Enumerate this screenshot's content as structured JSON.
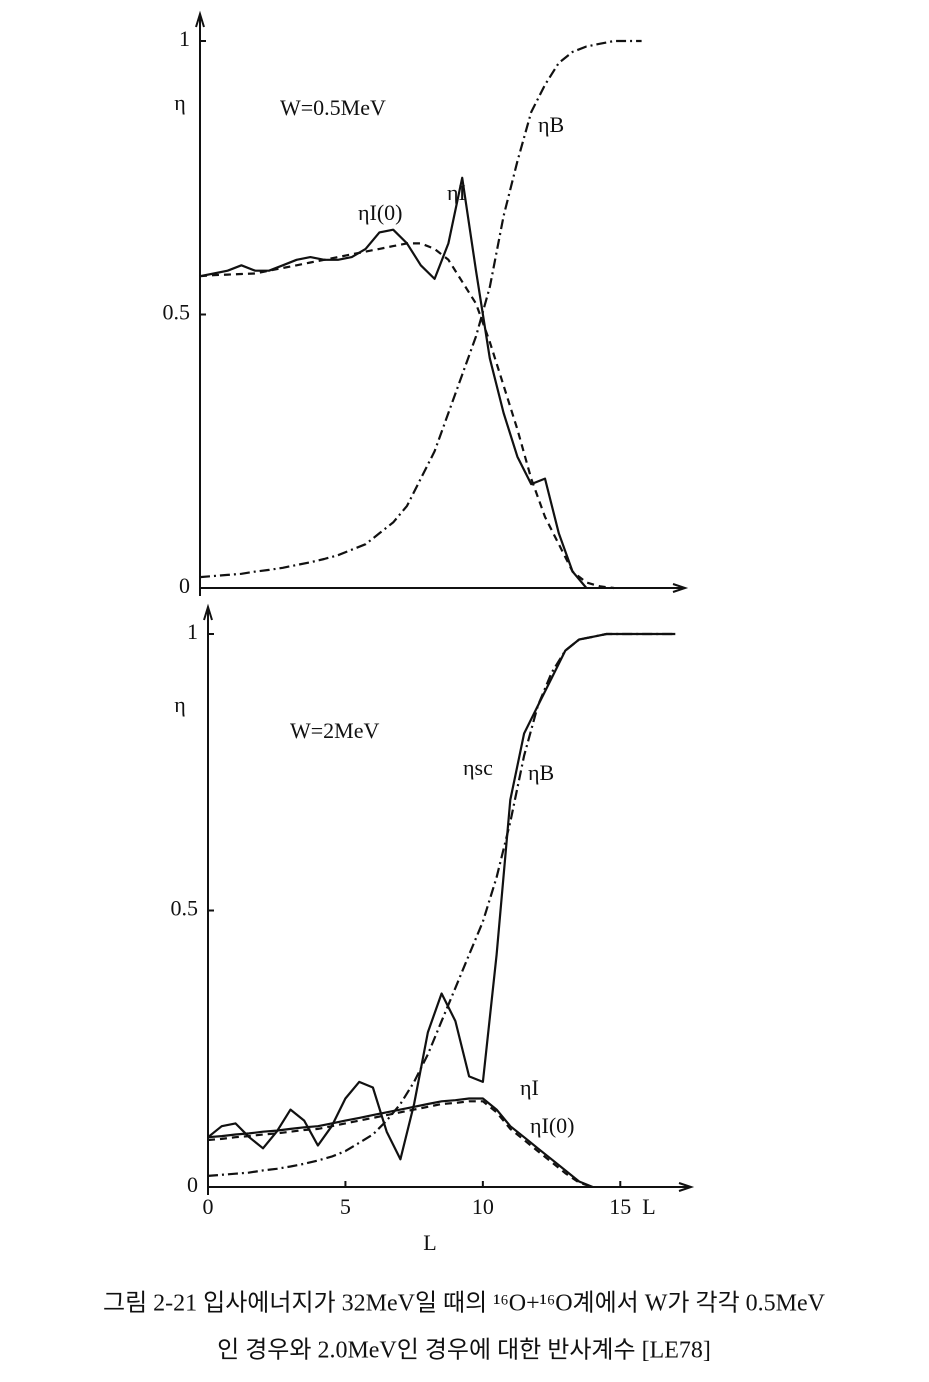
{
  "chart_data": [
    {
      "type": "line",
      "annotation": "W=0.5MeV",
      "ylabel": "η",
      "x": [
        0,
        0.5,
        1,
        1.5,
        2,
        2.5,
        3,
        3.5,
        4,
        4.5,
        5,
        5.5,
        6,
        6.5,
        7,
        7.5,
        8,
        8.5,
        9,
        9.5,
        10,
        10.5,
        11,
        11.5,
        12,
        12.5,
        13,
        13.5,
        14,
        14.5,
        15,
        15.5,
        16
      ],
      "xlim": [
        0,
        17.5
      ],
      "ylim": [
        0,
        1
      ],
      "yticks": [
        0,
        0.5,
        1
      ],
      "series": [
        {
          "name": "ηI",
          "color": "#111",
          "dash": "solid",
          "values": [
            0.57,
            0.575,
            0.58,
            0.59,
            0.58,
            0.58,
            0.59,
            0.6,
            0.605,
            0.6,
            0.6,
            0.605,
            0.62,
            0.65,
            0.655,
            0.63,
            0.59,
            0.565,
            0.63,
            0.75,
            0.58,
            0.42,
            0.32,
            0.24,
            0.19,
            0.2,
            0.1,
            0.03,
            0,
            null,
            null,
            null,
            null
          ]
        },
        {
          "name": "ηI(0)",
          "color": "#111",
          "dash": "dashed",
          "values": [
            0.57,
            0.572,
            0.573,
            0.574,
            0.575,
            0.58,
            0.585,
            0.59,
            0.595,
            0.6,
            0.605,
            0.61,
            0.615,
            0.62,
            0.625,
            0.63,
            0.63,
            0.62,
            0.6,
            0.56,
            0.52,
            0.45,
            0.37,
            0.29,
            0.2,
            0.13,
            0.08,
            0.03,
            0.01,
            0.003,
            0,
            null,
            null
          ]
        },
        {
          "name": "ηB",
          "color": "#111",
          "dash": "dashdot",
          "values": [
            0.02,
            0.022,
            0.024,
            0.026,
            0.03,
            0.033,
            0.037,
            0.042,
            0.047,
            0.053,
            0.06,
            0.07,
            0.08,
            0.1,
            0.12,
            0.15,
            0.2,
            0.25,
            0.32,
            0.39,
            0.46,
            0.55,
            0.68,
            0.78,
            0.87,
            0.92,
            0.96,
            0.98,
            0.99,
            0.995,
            1,
            1,
            1
          ]
        }
      ]
    },
    {
      "type": "line",
      "annotation": "W=2MeV",
      "ylabel": "η",
      "xlabel": "L",
      "x": [
        0,
        0.5,
        1,
        1.5,
        2,
        2.5,
        3,
        3.5,
        4,
        4.5,
        5,
        5.5,
        6,
        6.5,
        7,
        7.5,
        8,
        8.5,
        9,
        9.5,
        10,
        10.5,
        11,
        11.5,
        12,
        12.5,
        13,
        13.5,
        14,
        14.5,
        15,
        15.5,
        16,
        16.5,
        17
      ],
      "xlim": [
        0,
        17.5
      ],
      "ylim": [
        0,
        1
      ],
      "xticks": [
        0,
        5,
        10,
        15
      ],
      "yticks": [
        0,
        0.5,
        1
      ],
      "series": [
        {
          "name": "ηsc",
          "color": "#111",
          "dash": "solid",
          "values": [
            0.09,
            0.11,
            0.115,
            0.09,
            0.07,
            0.1,
            0.14,
            0.12,
            0.075,
            0.11,
            0.16,
            0.19,
            0.18,
            0.1,
            0.05,
            0.15,
            0.28,
            0.35,
            0.3,
            0.2,
            0.19,
            0.42,
            0.7,
            0.82,
            0.87,
            0.92,
            0.97,
            0.99,
            0.995,
            1,
            1,
            1,
            1,
            1,
            1
          ]
        },
        {
          "name": "ηI",
          "color": "#111",
          "dash": "solid",
          "values": [
            0.09,
            0.092,
            0.095,
            0.097,
            0.1,
            0.102,
            0.105,
            0.108,
            0.11,
            0.115,
            0.12,
            0.125,
            0.13,
            0.135,
            0.14,
            0.145,
            0.15,
            0.155,
            0.157,
            0.16,
            0.16,
            0.14,
            0.11,
            0.09,
            0.07,
            0.05,
            0.03,
            0.01,
            0,
            null,
            null,
            null,
            null,
            null,
            null
          ]
        },
        {
          "name": "ηI(0)",
          "color": "#111",
          "dash": "dashed",
          "values": [
            0.085,
            0.087,
            0.09,
            0.092,
            0.095,
            0.097,
            0.1,
            0.103,
            0.105,
            0.11,
            0.115,
            0.12,
            0.125,
            0.13,
            0.135,
            0.14,
            0.145,
            0.15,
            0.152,
            0.155,
            0.155,
            0.135,
            0.105,
            0.085,
            0.065,
            0.045,
            0.025,
            0.008,
            0,
            null,
            null,
            null,
            null,
            null,
            null
          ]
        },
        {
          "name": "ηB",
          "color": "#111",
          "dash": "dashdot",
          "values": [
            0.02,
            0.022,
            0.024,
            0.026,
            0.03,
            0.033,
            0.037,
            0.042,
            0.048,
            0.055,
            0.065,
            0.08,
            0.095,
            0.12,
            0.15,
            0.19,
            0.24,
            0.3,
            0.36,
            0.42,
            0.48,
            0.56,
            0.66,
            0.78,
            0.87,
            0.93,
            0.97,
            0.99,
            0.995,
            1,
            1,
            1,
            1,
            1,
            1
          ]
        }
      ]
    }
  ],
  "caption": {
    "lines": [
      "그림 2-21 입사에너지가 32MeV일 때의 ¹⁶O+¹⁶O계에서 W가 각각 0.5MeV",
      "인 경우와 2.0MeV인 경우에 대한 반사계수 [LE78]"
    ]
  }
}
